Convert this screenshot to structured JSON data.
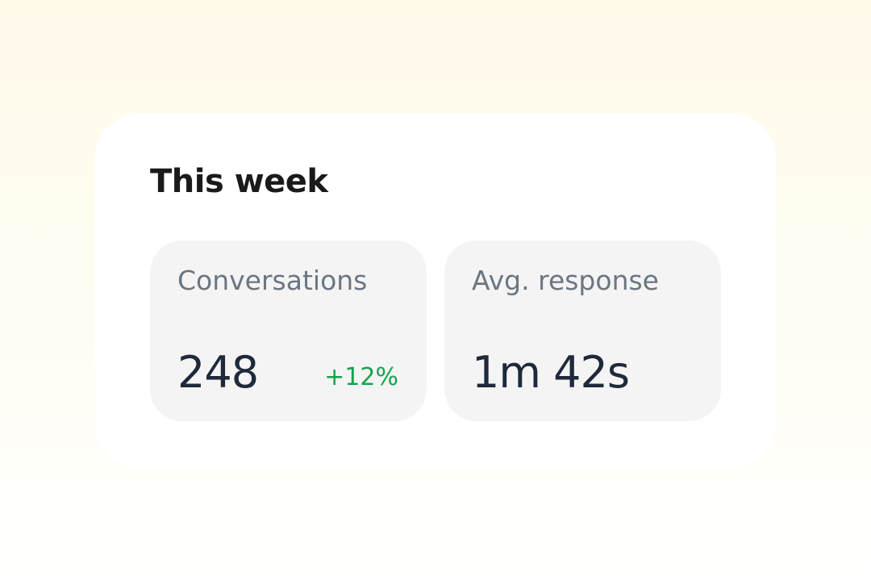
{
  "card": {
    "title": "This week",
    "stats": [
      {
        "label": "Conversations",
        "value": "248",
        "change": "+12%"
      },
      {
        "label": "Avg. response",
        "value": "1m 42s"
      }
    ]
  }
}
